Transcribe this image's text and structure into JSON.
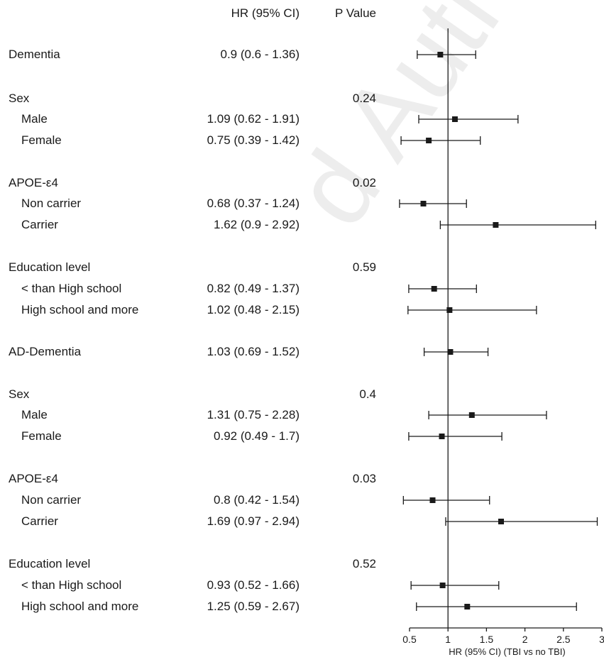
{
  "header": {
    "hr_label": "HR (95% CI)",
    "p_label": "P Value"
  },
  "chart_data": {
    "type": "forest",
    "xlabel": "HR (95% CI) (TBI vs no TBI)",
    "xlim": [
      0.5,
      3.0
    ],
    "xticks": [
      "0.5",
      "1",
      "1.5",
      "2",
      "2.5",
      "3"
    ],
    "reference_line": 1.0,
    "rows": [
      {
        "label": "Dementia",
        "indent": false,
        "hr_text": "0.9 (0.6 - 1.36)",
        "p": "",
        "hr": 0.9,
        "lo": 0.6,
        "hi": 1.36
      },
      {
        "label": "Sex",
        "indent": false,
        "hr_text": "",
        "p": "0.24",
        "hr": null,
        "lo": null,
        "hi": null
      },
      {
        "label": "Male",
        "indent": true,
        "hr_text": "1.09 (0.62 - 1.91)",
        "p": "",
        "hr": 1.09,
        "lo": 0.62,
        "hi": 1.91
      },
      {
        "label": "Female",
        "indent": true,
        "hr_text": "0.75 (0.39 - 1.42)",
        "p": "",
        "hr": 0.75,
        "lo": 0.39,
        "hi": 1.42
      },
      {
        "label": "APOE-ε4",
        "indent": false,
        "hr_text": "",
        "p": "0.02",
        "hr": null,
        "lo": null,
        "hi": null
      },
      {
        "label": "Non carrier",
        "indent": true,
        "hr_text": "0.68 (0.37 - 1.24)",
        "p": "",
        "hr": 0.68,
        "lo": 0.37,
        "hi": 1.24
      },
      {
        "label": "Carrier",
        "indent": true,
        "hr_text": "1.62 (0.9 - 2.92)",
        "p": "",
        "hr": 1.62,
        "lo": 0.9,
        "hi": 2.92
      },
      {
        "label": "Education level",
        "indent": false,
        "hr_text": "",
        "p": "0.59",
        "hr": null,
        "lo": null,
        "hi": null
      },
      {
        "label": "< than High school",
        "indent": true,
        "hr_text": "0.82 (0.49 - 1.37)",
        "p": "",
        "hr": 0.82,
        "lo": 0.49,
        "hi": 1.37
      },
      {
        "label": "High school and more",
        "indent": true,
        "hr_text": "1.02 (0.48 - 2.15)",
        "p": "",
        "hr": 1.02,
        "lo": 0.48,
        "hi": 2.15
      },
      {
        "label": "AD-Dementia",
        "indent": false,
        "hr_text": "1.03 (0.69 - 1.52)",
        "p": "",
        "hr": 1.03,
        "lo": 0.69,
        "hi": 1.52
      },
      {
        "label": "Sex",
        "indent": false,
        "hr_text": "",
        "p": "0.4",
        "hr": null,
        "lo": null,
        "hi": null
      },
      {
        "label": "Male",
        "indent": true,
        "hr_text": "1.31 (0.75 - 2.28)",
        "p": "",
        "hr": 1.31,
        "lo": 0.75,
        "hi": 2.28
      },
      {
        "label": "Female",
        "indent": true,
        "hr_text": "0.92 (0.49 - 1.7)",
        "p": "",
        "hr": 0.92,
        "lo": 0.49,
        "hi": 1.7
      },
      {
        "label": "APOE-ε4",
        "indent": false,
        "hr_text": "",
        "p": "0.03",
        "hr": null,
        "lo": null,
        "hi": null
      },
      {
        "label": "Non carrier",
        "indent": true,
        "hr_text": "0.8 (0.42 - 1.54)",
        "p": "",
        "hr": 0.8,
        "lo": 0.42,
        "hi": 1.54
      },
      {
        "label": "Carrier",
        "indent": true,
        "hr_text": "1.69 (0.97 - 2.94)",
        "p": "",
        "hr": 1.69,
        "lo": 0.97,
        "hi": 2.94
      },
      {
        "label": "Education level",
        "indent": false,
        "hr_text": "",
        "p": "0.52",
        "hr": null,
        "lo": null,
        "hi": null
      },
      {
        "label": "< than High school",
        "indent": true,
        "hr_text": "0.93 (0.52 - 1.66)",
        "p": "",
        "hr": 0.93,
        "lo": 0.52,
        "hi": 1.66
      },
      {
        "label": "High school and more",
        "indent": true,
        "hr_text": "1.25 (0.59 - 2.67)",
        "p": "",
        "hr": 1.25,
        "lo": 0.59,
        "hi": 2.67
      }
    ]
  },
  "watermark": {
    "text": "d Author Pr"
  }
}
